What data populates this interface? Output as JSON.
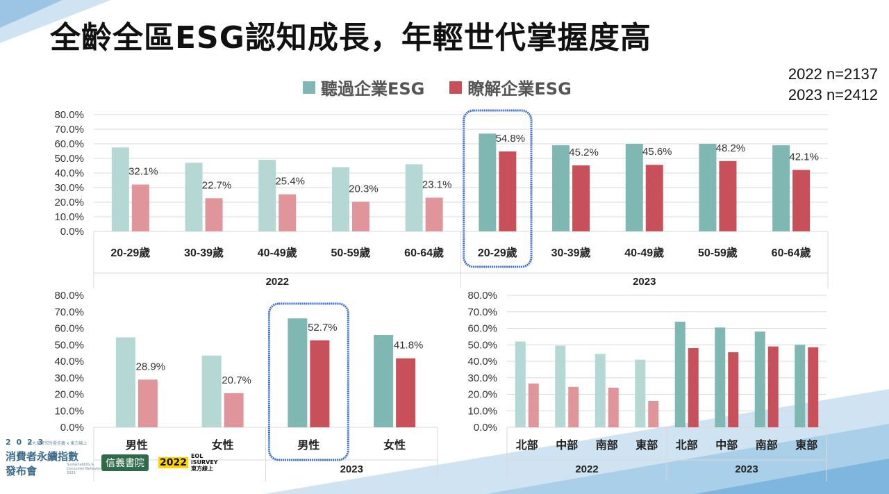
{
  "title": "全齡全區ESG認知成長，年輕世代掌握度高",
  "sample_sizes": [
    "2022 n=2137",
    "2023 n=2412"
  ],
  "legend": [
    {
      "label": "聽過企業ESG",
      "color": "#7fb7b2"
    },
    {
      "label": "瞭解企業ESG",
      "color": "#c8505a"
    }
  ],
  "colors": {
    "heard_2022": "#b5d8d4",
    "know_2022": "#e0959a",
    "heard_2023": "#7fb7b2",
    "know_2023": "#c8505a",
    "highlight": "#3e6fd8"
  },
  "footer": {
    "year": "2 0 2 3",
    "subtitle": "第大系研究所暨信義 x 東方線上",
    "title_line1": "消費者永續指數",
    "title_line2": "發布會",
    "english": "Sustainability & Consumer Behavior 2023",
    "logo1": "信義書院",
    "logo2_year": "2022",
    "logo2_text1": "EOL",
    "logo2_text2": "iSURVEY",
    "logo2_text3": "東方線上"
  },
  "chart_data": [
    {
      "type": "bar",
      "yticks": [
        "80.0%",
        "70.0%",
        "60.0%",
        "50.0%",
        "40.0%",
        "30.0%",
        "20.0%",
        "10.0%",
        "0.0%"
      ],
      "ylim": [
        0,
        80
      ],
      "grid": true,
      "groups": [
        "2022",
        "2023"
      ],
      "categories": [
        "20-29歲",
        "30-39歲",
        "40-49歲",
        "50-59歲",
        "60-64歲",
        "20-29歲",
        "30-39歲",
        "40-49歲",
        "50-59歲",
        "60-64歲"
      ],
      "group_of": [
        0,
        0,
        0,
        0,
        0,
        1,
        1,
        1,
        1,
        1
      ],
      "series": [
        {
          "values": [
            57.5,
            47.0,
            49.0,
            44.0,
            46.0,
            67.0,
            59.0,
            60.0,
            60.0,
            59.0
          ]
        },
        {
          "values": [
            32.1,
            22.7,
            25.4,
            20.3,
            23.1,
            54.8,
            45.2,
            45.6,
            48.2,
            42.1
          ]
        }
      ],
      "data_labels": [
        "32.1%",
        "22.7%",
        "25.4%",
        "20.3%",
        "23.1%",
        "54.8%",
        "45.2%",
        "45.6%",
        "48.2%",
        "42.1%"
      ],
      "highlighted": [
        5
      ]
    },
    {
      "type": "bar",
      "yticks": [
        "80.0%",
        "70.0%",
        "60.0%",
        "50.0%",
        "40.0%",
        "30.0%",
        "20.0%",
        "10.0%",
        "0.0%"
      ],
      "ylim": [
        0,
        80
      ],
      "grid": false,
      "groups": [
        "",
        "2023"
      ],
      "categories": [
        "男性",
        "女性",
        "男性",
        "女性"
      ],
      "group_of": [
        0,
        0,
        1,
        1
      ],
      "series": [
        {
          "values": [
            54.5,
            43.5,
            66.0,
            56.0
          ]
        },
        {
          "values": [
            28.9,
            20.7,
            52.7,
            41.8
          ]
        }
      ],
      "data_labels": [
        "28.9%",
        "20.7%",
        "52.7%",
        "41.8%"
      ],
      "highlighted": [
        2
      ]
    },
    {
      "type": "bar",
      "yticks": [
        "80.0%",
        "70.0%",
        "60.0%",
        "50.0%",
        "40.0%",
        "30.0%",
        "20.0%",
        "10.0%",
        "0.0%"
      ],
      "ylim": [
        0,
        80
      ],
      "grid": true,
      "groups": [
        "2022",
        "2023"
      ],
      "categories": [
        "北部",
        "中部",
        "南部",
        "東部",
        "北部",
        "中部",
        "南部",
        "東部"
      ],
      "group_of": [
        0,
        0,
        0,
        0,
        1,
        1,
        1,
        1
      ],
      "series": [
        {
          "values": [
            52.0,
            49.5,
            44.5,
            41.0,
            64.0,
            60.5,
            58.0,
            50.0
          ]
        },
        {
          "values": [
            26.5,
            24.5,
            24.0,
            16.0,
            48.0,
            45.5,
            49.0,
            48.5
          ]
        }
      ],
      "data_labels": [],
      "highlighted": []
    }
  ]
}
